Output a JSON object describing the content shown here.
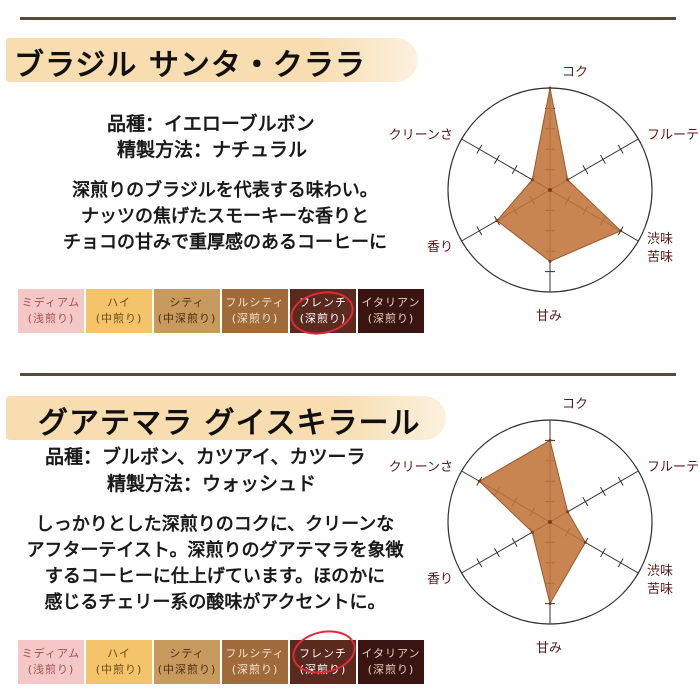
{
  "products": [
    {
      "name": "ブラジル サンタ・クララ",
      "variety_label": "品種：",
      "variety": "イエローブルボン",
      "process_label": "精製方法：",
      "process": "ナチュラル",
      "description": [
        "深煎りのブラジルを代表する味わい。",
        "ナッツの焦げたスモーキーな香りと",
        "チョコの甘みで重厚感のあるコーヒーに"
      ],
      "selected_roast": "french"
    },
    {
      "name": "グアテマラ グイスキラール",
      "variety_label": "品種：",
      "variety": "ブルボン、カツアイ、カツーラ",
      "process_label": "精製方法：",
      "process": "ウォッシュド",
      "description": [
        "しっかりとした深煎りのコクに、クリーンな",
        "アフターテイスト。深煎りのグアテマラを象徴",
        "するコーヒーに仕上げています。ほのかに",
        "感じるチェリー系の酸味がアクセントに。"
      ],
      "selected_roast": "french"
    }
  ],
  "roast_levels": [
    {
      "id": "medium",
      "name": "ミディアム",
      "sub": "(浅煎り)",
      "bg": "#f5c8c8",
      "fg": "#a05050"
    },
    {
      "id": "high",
      "name": "ハイ",
      "sub": "(中煎り)",
      "bg": "#f3c46a",
      "fg": "#6b4a1a"
    },
    {
      "id": "city",
      "name": "シティ",
      "sub": "(中深煎り)",
      "bg": "#c99a5e",
      "fg": "#4a2e10"
    },
    {
      "id": "fullcity",
      "name": "フルシティ",
      "sub": "(深煎り)",
      "bg": "#a06a3a",
      "fg": "#f5e6d0"
    },
    {
      "id": "french",
      "name": "フレンチ",
      "sub": "(深煎り)",
      "bg": "#5a2a1e",
      "fg": "#ffffff"
    },
    {
      "id": "italian",
      "name": "イタリアン",
      "sub": "(深煎り)",
      "bg": "#3a1410",
      "fg": "#e8d0c0"
    }
  ],
  "chart_data": [
    {
      "type": "radar",
      "axes": [
        "コク",
        "フルーティ",
        "渋味\n苦味",
        "甘み",
        "香り",
        "クリーンさ"
      ],
      "scale": [
        0,
        5
      ],
      "values": [
        5,
        1,
        4,
        3.5,
        3,
        1
      ],
      "color": "#c0743a"
    },
    {
      "type": "radar",
      "axes": [
        "コク",
        "フルーティ",
        "渋味\n苦味",
        "甘み",
        "香り",
        "クリーンさ"
      ],
      "scale": [
        0,
        5
      ],
      "values": [
        4,
        1,
        2,
        4,
        1,
        4
      ],
      "color": "#c0743a"
    }
  ]
}
